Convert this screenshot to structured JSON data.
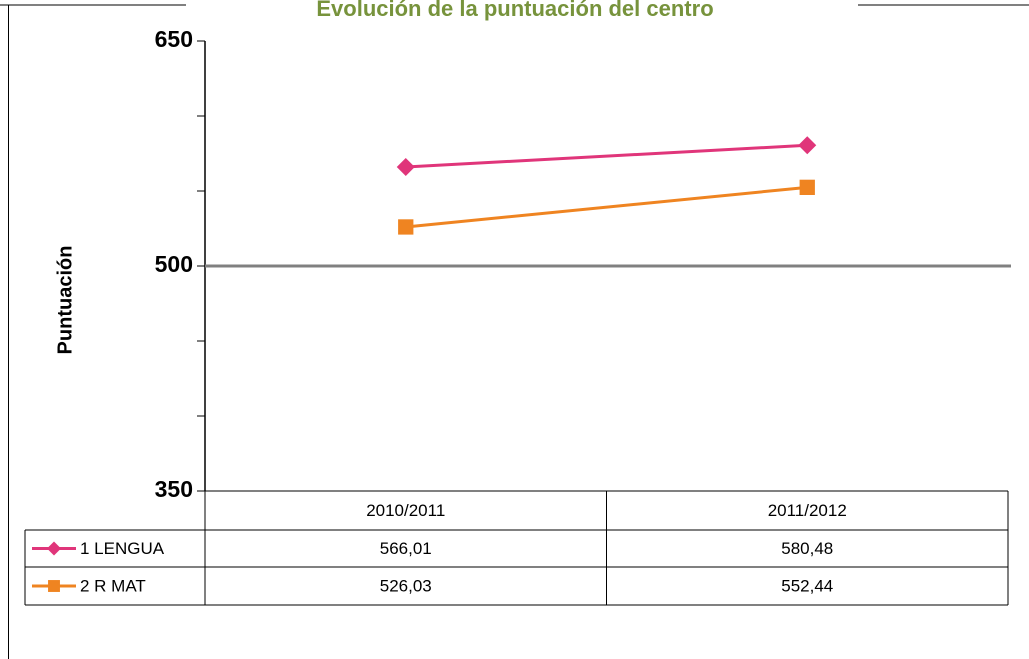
{
  "chart_data": {
    "type": "line",
    "title": "Evolución de la puntuación del centro",
    "y_label": "Puntuación",
    "categories": [
      "2010/2011",
      "2011/2012"
    ],
    "series": [
      {
        "name": "1 LENGUA",
        "color": "#e0357a",
        "marker": "diamond",
        "values": [
          566.01,
          580.48
        ],
        "value_labels": [
          "566,01",
          "580,48"
        ]
      },
      {
        "name": "2 R MAT",
        "color": "#ef8421",
        "marker": "square",
        "values": [
          526.03,
          552.44
        ],
        "value_labels": [
          "526,03",
          "552,44"
        ]
      }
    ],
    "ylim": [
      350,
      650
    ],
    "yticks": [
      350,
      500,
      650
    ],
    "y_minor_ticks": [
      400,
      450,
      550,
      600
    ],
    "reference_line": 500,
    "data_table": true
  }
}
